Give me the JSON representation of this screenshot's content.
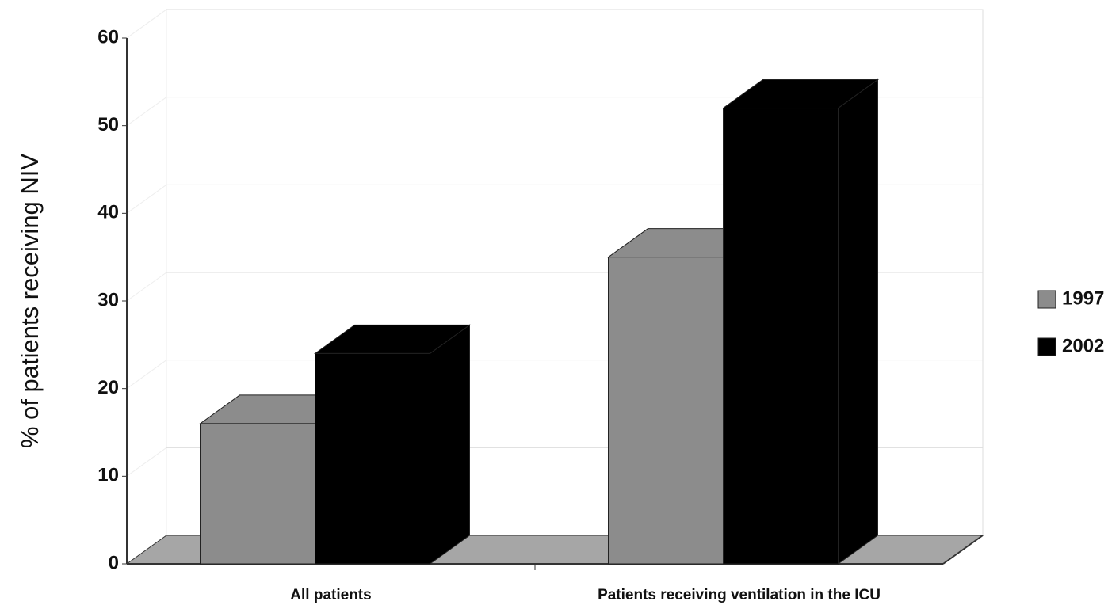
{
  "chart_data": {
    "type": "bar3d",
    "y_label": "% of patients receiving NIV",
    "categories": [
      "All patients",
      "Patients receiving ventilation in the ICU"
    ],
    "series": [
      {
        "name": "1997",
        "color": "#8c8c8c",
        "values": [
          16,
          35
        ]
      },
      {
        "name": "2002",
        "color": "#000000",
        "values": [
          24,
          52
        ]
      }
    ],
    "ylim": [
      0,
      60
    ],
    "yticks": [
      0,
      10,
      20,
      30,
      40,
      50,
      60
    ],
    "grid": true,
    "legend": "right"
  }
}
